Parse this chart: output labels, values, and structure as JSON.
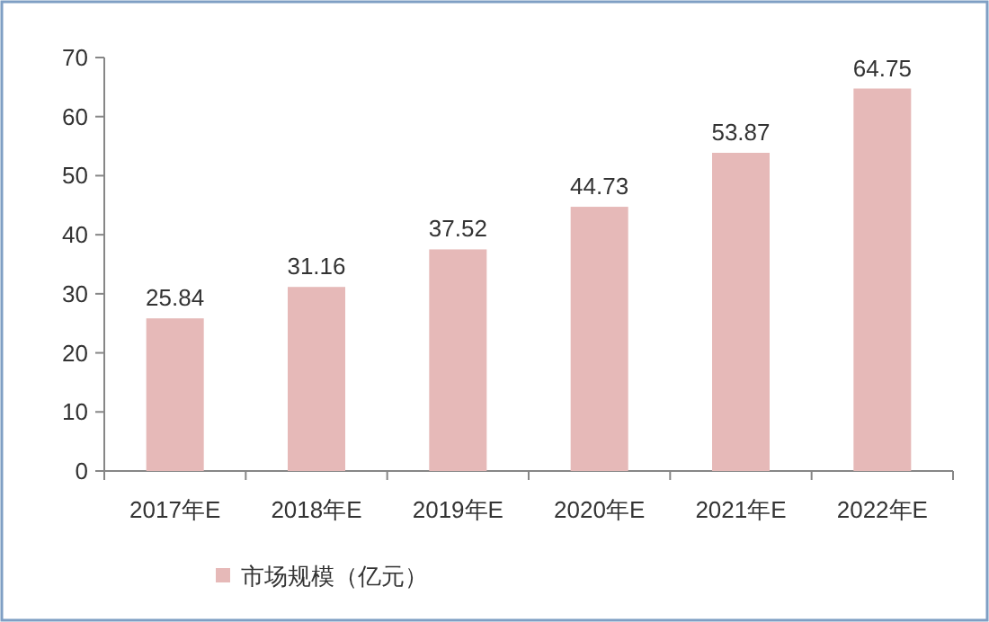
{
  "chart_data": {
    "type": "bar",
    "categories": [
      "2017年E",
      "2018年E",
      "2019年E",
      "2020年E",
      "2021年E",
      "2022年E"
    ],
    "series": [
      {
        "name": "市场规模（亿元）",
        "color": "#e6b9b8",
        "values": [
          25.84,
          31.16,
          37.52,
          44.73,
          53.87,
          64.75
        ]
      }
    ],
    "ylim": [
      0,
      70
    ],
    "yticks": [
      0,
      10,
      20,
      30,
      40,
      50,
      60,
      70
    ],
    "data_labels": true,
    "legend": "bottom",
    "grid": false
  }
}
